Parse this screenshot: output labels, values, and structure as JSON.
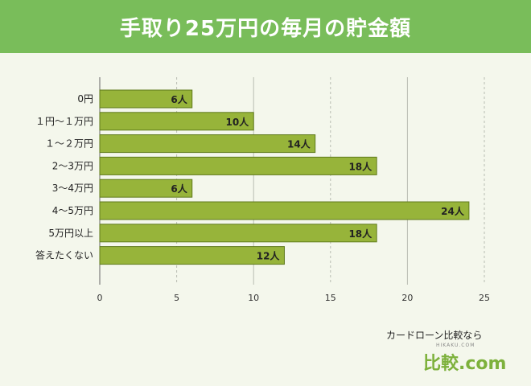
{
  "title": "手取り25万円の毎月の貯金額",
  "colors": {
    "header": "#79bd5a",
    "bar": "#97b43a",
    "bar_border": "#5f7a1c",
    "background": "#f4f7ec"
  },
  "chart_data": {
    "type": "bar",
    "orientation": "horizontal",
    "categories": [
      "0円",
      "１円〜１万円",
      "１〜２万円",
      "2〜3万円",
      "3〜4万円",
      "4〜5万円",
      "5万円以上",
      "答えたくない"
    ],
    "values": [
      6,
      10,
      14,
      18,
      6,
      24,
      18,
      12
    ],
    "value_labels": [
      "6人",
      "10人",
      "14人",
      "18人",
      "6人",
      "24人",
      "18人",
      "12人"
    ],
    "xlim": [
      0,
      25
    ],
    "xticks": [
      0,
      5,
      10,
      15,
      20,
      25
    ],
    "grid": true
  },
  "logo": {
    "tagline": "カードローン比較なら",
    "small": "HIKAKU.COM",
    "name": "比較.com"
  }
}
